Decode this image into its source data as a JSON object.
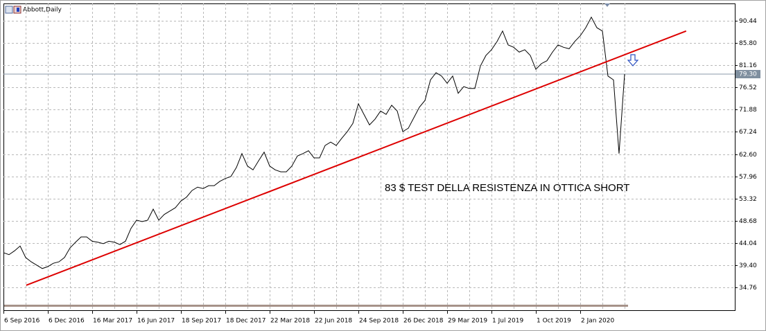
{
  "chart_data": {
    "type": "line",
    "title": "Abbott,Daily",
    "annotation": "83 $ TEST DELLA RESISTENZA IN OTTICA SHORT",
    "categories": [
      "6 Sep 2016",
      null,
      null,
      null,
      null,
      null,
      null,
      null,
      "6 Dec 2016",
      null,
      null,
      null,
      null,
      null,
      null,
      null,
      "16 Mar 2017",
      null,
      null,
      null,
      null,
      null,
      null,
      null,
      "16 Jun 2017",
      null,
      null,
      null,
      null,
      null,
      null,
      null,
      "18 Sep 2017",
      null,
      null,
      null,
      null,
      null,
      null,
      null,
      "18 Dec 2017",
      null,
      null,
      null,
      null,
      null,
      null,
      null,
      "22 Mar 2018",
      null,
      null,
      null,
      null,
      null,
      null,
      null,
      "22 Jun 2018",
      null,
      null,
      null,
      null,
      null,
      null,
      null,
      "24 Sep 2018",
      null,
      null,
      null,
      null,
      null,
      null,
      null,
      "26 Dec 2018",
      null,
      null,
      null,
      null,
      null,
      null,
      null,
      "29 Mar 2019",
      null,
      null,
      null,
      null,
      null,
      null,
      null,
      "1 Jul 2019",
      null,
      null,
      null,
      null,
      null,
      null,
      null,
      "1 Oct 2019",
      null,
      null,
      null,
      null,
      null,
      null,
      null,
      "2 Jan 2020",
      null,
      null,
      null,
      null,
      null,
      null,
      null,
      null
    ],
    "series": [
      {
        "name": "Abbott",
        "color": "#000000",
        "values": [
          42.0,
          41.6,
          42.4,
          43.4,
          41.0,
          40.1,
          39.4,
          38.7,
          39.1,
          39.8,
          40.1,
          41.0,
          43.0,
          44.2,
          45.3,
          45.3,
          44.4,
          44.2,
          43.9,
          44.4,
          44.2,
          43.7,
          44.4,
          47.1,
          48.8,
          48.5,
          48.8,
          51.1,
          48.8,
          50.0,
          50.7,
          51.4,
          52.8,
          53.6,
          55.0,
          55.7,
          55.4,
          56.0,
          56.0,
          56.9,
          57.5,
          57.9,
          59.8,
          62.7,
          60.1,
          59.3,
          61.2,
          63.0,
          60.1,
          59.3,
          58.9,
          58.9,
          60.1,
          62.2,
          62.7,
          63.3,
          61.8,
          61.8,
          64.4,
          65.1,
          64.4,
          65.9,
          67.3,
          69.0,
          73.1,
          70.9,
          68.7,
          69.9,
          71.6,
          70.9,
          72.8,
          71.6,
          67.3,
          68.0,
          70.2,
          72.4,
          73.8,
          78.1,
          79.6,
          78.9,
          77.4,
          78.9,
          75.3,
          76.7,
          76.3,
          76.3,
          81.0,
          83.2,
          84.4,
          86.1,
          88.3,
          85.4,
          84.9,
          83.9,
          84.4,
          83.2,
          80.3,
          81.5,
          82.1,
          83.9,
          85.4,
          84.9,
          84.6,
          86.1,
          87.3,
          89.0,
          91.2,
          89.0,
          88.3,
          78.9,
          78.1,
          62.7,
          79.3
        ]
      }
    ],
    "trendline": {
      "color": "#dd0000",
      "start": {
        "index": 4.1,
        "value": 35.2
      },
      "end": {
        "index": 123.1,
        "value": 88.3
      }
    },
    "last_price": {
      "value": 79.3,
      "label": "79.30"
    },
    "ylim": [
      29.99,
      94.06
    ],
    "yticks": [
      90.44,
      {
        "value": 85.8,
        "label": "85.80"
      },
      81.16,
      76.52,
      71.88,
      67.24,
      {
        "value": 62.6,
        "label": "62.60"
      },
      57.96,
      53.32,
      48.68,
      44.04,
      {
        "value": 39.4,
        "label": "39.40"
      },
      34.76
    ],
    "grid": true
  }
}
